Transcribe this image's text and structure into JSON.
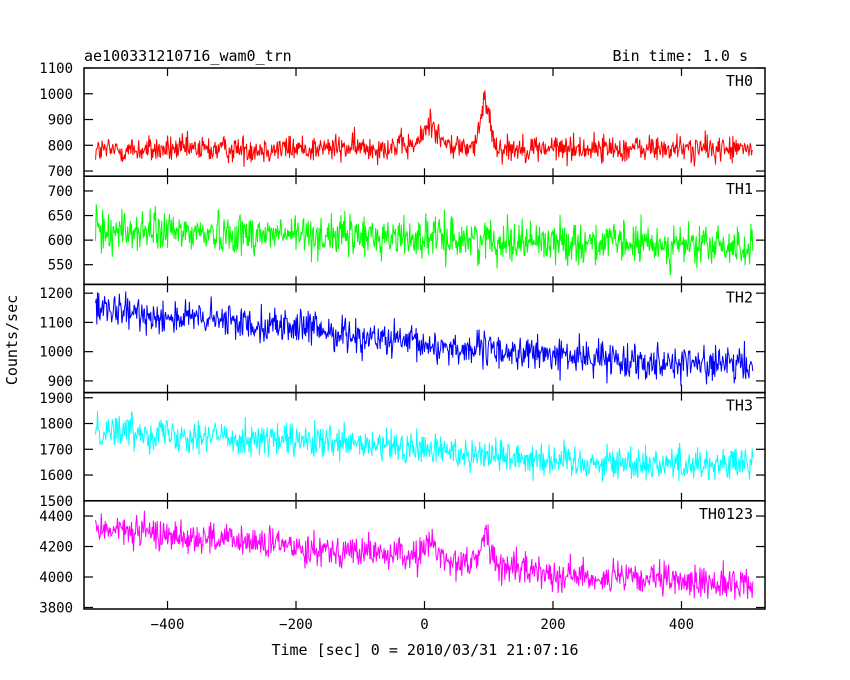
{
  "header": {
    "obs_id": "ae100331210716_wam0_trn",
    "bin_time": "Bin time: 1.0 s"
  },
  "chart_data": {
    "type": "line",
    "title": "ae100331210716_wam0_trn",
    "subtitle": "Bin time: 1.0 s",
    "xlabel": "Time [sec] 0 = 2010/03/31 21:07:16",
    "ylabel": "Counts/sec",
    "xlim": [
      -530,
      530
    ],
    "x_ticks": [
      -400,
      -200,
      0,
      200,
      400
    ],
    "x_tick_labels": [
      "−400",
      "−200",
      "0",
      "200",
      "400"
    ],
    "x_data_range": [
      -512,
      511
    ],
    "grid": false,
    "panels": [
      {
        "name": "TH0",
        "color": "#ff0000",
        "ylim": [
          680,
          1100
        ],
        "y_ticks": [
          700,
          800,
          900,
          1000,
          1100
        ],
        "y_tick_labels": [
          "700",
          "800",
          "900",
          "1000",
          "1100"
        ],
        "baseline_points": [
          [
            -512,
            780
          ],
          [
            -100,
            790
          ],
          [
            0,
            800
          ],
          [
            100,
            790
          ],
          [
            512,
            785
          ]
        ],
        "noise": 38,
        "features": [
          {
            "center": 10,
            "width": 14,
            "amp": 90
          },
          {
            "center": 95,
            "width": 10,
            "amp": 180
          }
        ]
      },
      {
        "name": "TH1",
        "color": "#00ff00",
        "ylim": [
          510,
          730
        ],
        "y_ticks": [
          550,
          600,
          650,
          700
        ],
        "y_tick_labels": [
          "550",
          "600",
          "650",
          "700"
        ],
        "baseline_points": [
          [
            -512,
            620
          ],
          [
            0,
            605
          ],
          [
            512,
            585
          ]
        ],
        "noise": 30,
        "features": []
      },
      {
        "name": "TH2",
        "color": "#0000ff",
        "ylim": [
          860,
          1230
        ],
        "y_ticks": [
          900,
          1000,
          1100,
          1200
        ],
        "y_tick_labels": [
          "900",
          "1000",
          "1100",
          "1200"
        ],
        "baseline_points": [
          [
            -512,
            1140
          ],
          [
            -200,
            1085
          ],
          [
            0,
            1020
          ],
          [
            250,
            980
          ],
          [
            512,
            950
          ]
        ],
        "noise": 42,
        "features": []
      },
      {
        "name": "TH3",
        "color": "#00ffff",
        "ylim": [
          1500,
          1920
        ],
        "y_ticks": [
          1500,
          1600,
          1700,
          1800,
          1900
        ],
        "y_tick_labels": [
          "1500",
          "1600",
          "1700",
          "1800",
          "1900"
        ],
        "baseline_points": [
          [
            -512,
            1780
          ],
          [
            -200,
            1730
          ],
          [
            0,
            1700
          ],
          [
            250,
            1650
          ],
          [
            512,
            1640
          ]
        ],
        "noise": 48,
        "features": []
      },
      {
        "name": "TH0123",
        "color": "#ff00ff",
        "ylim": [
          3790,
          4500
        ],
        "y_ticks": [
          3800,
          4000,
          4200,
          4400
        ],
        "y_tick_labels": [
          "3800",
          "4000",
          "4200",
          "4400"
        ],
        "baseline_points": [
          [
            -512,
            4320
          ],
          [
            -200,
            4200
          ],
          [
            0,
            4130
          ],
          [
            250,
            4000
          ],
          [
            512,
            3950
          ]
        ],
        "noise": 75,
        "features": [
          {
            "center": 10,
            "width": 14,
            "amp": 90
          },
          {
            "center": 95,
            "width": 10,
            "amp": 200
          }
        ]
      }
    ]
  }
}
